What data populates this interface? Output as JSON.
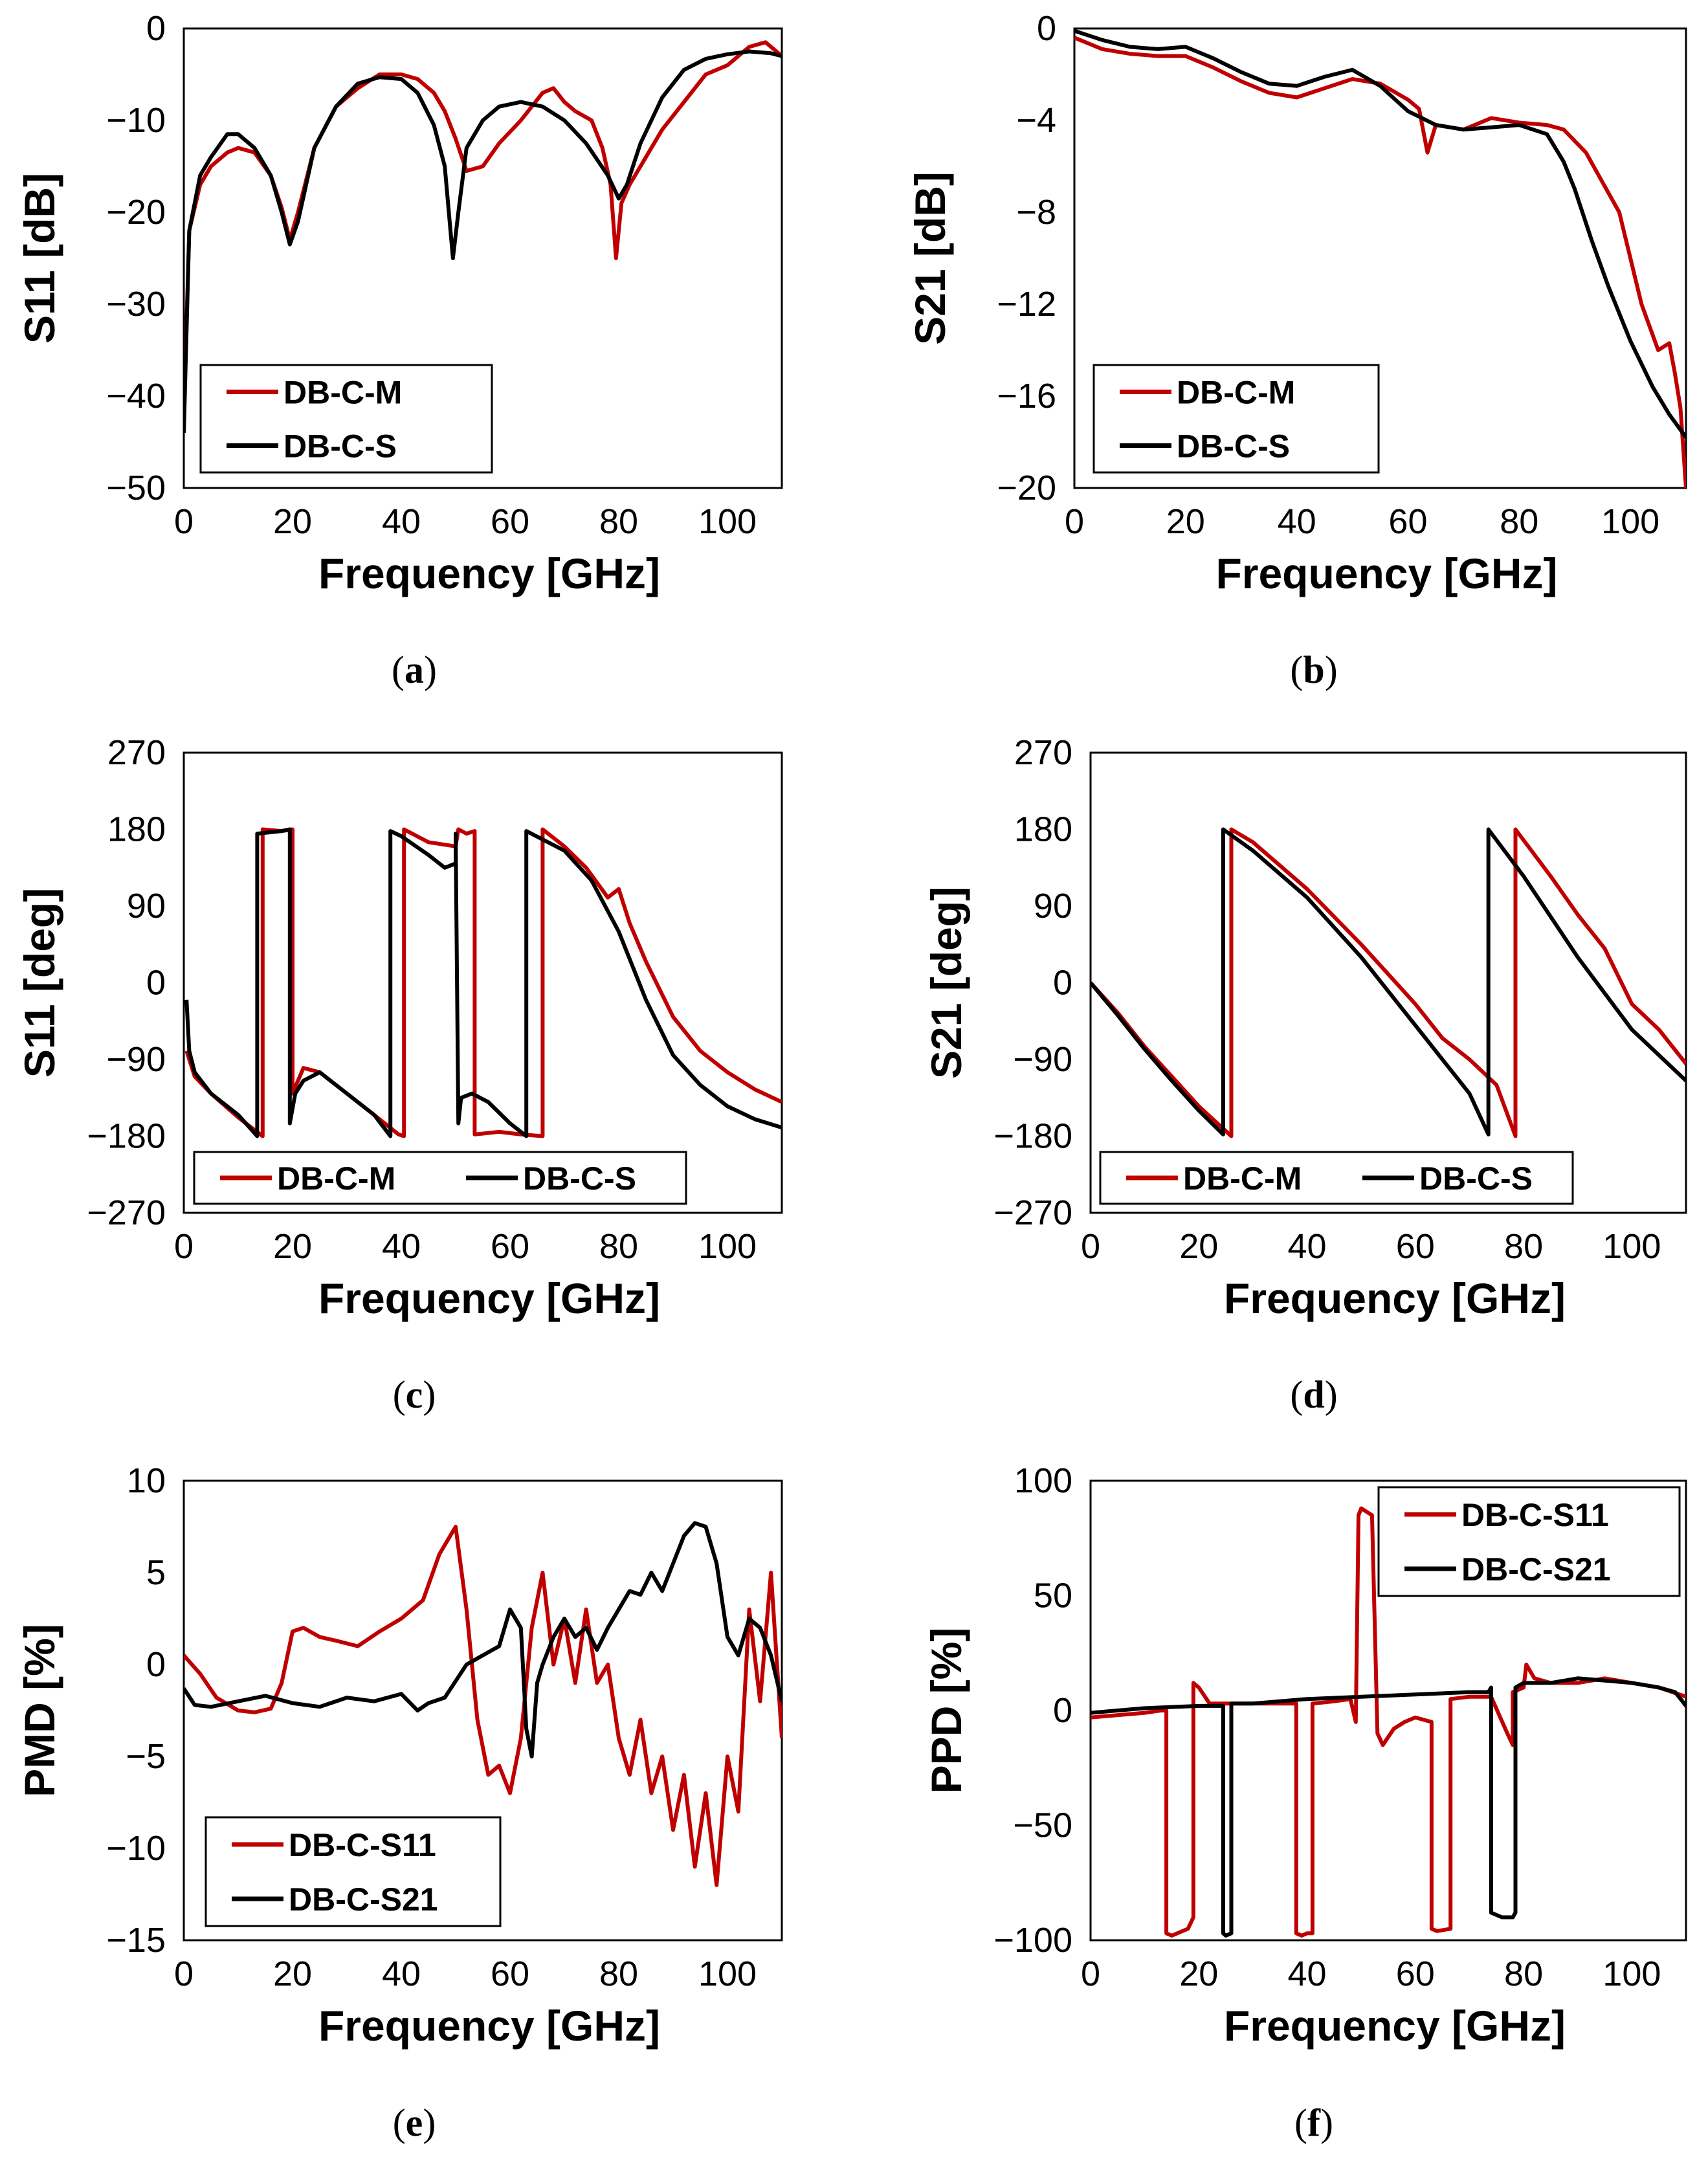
{
  "colors": {
    "measured": "#c00000",
    "simulated": "#000000"
  },
  "chart_data": [
    {
      "id": "a",
      "caption_label": "a",
      "type": "line",
      "xlabel": "Frequency [GHz]",
      "ylabel": "S11 [dB]",
      "xlim": [
        0,
        110
      ],
      "ylim": [
        -50,
        0
      ],
      "xticks": [
        "0",
        "20",
        "40",
        "60",
        "80",
        "100"
      ],
      "yticks": [
        "0",
        "−10",
        "−20",
        "−30",
        "−40",
        "−50"
      ],
      "legend": {
        "position": "bottom-left",
        "layout": "vertical"
      },
      "series": [
        {
          "name": "DB-C-M",
          "color": "#c00000",
          "x": [
            0,
            1,
            3,
            5,
            8,
            10,
            13,
            16,
            18,
            19.5,
            21,
            24,
            28,
            32,
            36,
            40,
            43,
            46,
            48,
            50,
            52,
            55,
            58,
            62,
            66,
            68,
            70,
            72,
            75,
            77,
            78.5,
            79.5,
            80.5,
            82,
            85,
            88,
            92,
            96,
            100,
            104,
            107,
            110
          ],
          "y": [
            -42,
            -22,
            -17,
            -15,
            -13.5,
            -13,
            -13.5,
            -16,
            -19.5,
            -23,
            -20,
            -13,
            -8.5,
            -6.5,
            -5,
            -5,
            -5.5,
            -7,
            -9,
            -12,
            -15.5,
            -15,
            -12.5,
            -10,
            -7,
            -6.5,
            -8,
            -9,
            -10,
            -13,
            -17,
            -25,
            -19,
            -17,
            -14,
            -11,
            -8,
            -5,
            -4,
            -2,
            -1.5,
            -3
          ]
        },
        {
          "name": "DB-C-S",
          "color": "#000000",
          "x": [
            0,
            1,
            3,
            5,
            8,
            10,
            13,
            16,
            18,
            19.5,
            21,
            24,
            28,
            32,
            36,
            40,
            43,
            46,
            48,
            49.5,
            50.5,
            52,
            55,
            58,
            62,
            66,
            70,
            74,
            78,
            80,
            81.5,
            84,
            88,
            92,
            96,
            100,
            104,
            108,
            110
          ],
          "y": [
            -44,
            -22,
            -16,
            -14,
            -11.5,
            -11.5,
            -13,
            -16,
            -20,
            -23.5,
            -21,
            -13,
            -8.5,
            -6,
            -5.3,
            -5.5,
            -7,
            -10.5,
            -15,
            -25,
            -20,
            -13,
            -10,
            -8.5,
            -8,
            -8.5,
            -10,
            -12.5,
            -16,
            -18.5,
            -17,
            -12.5,
            -7.5,
            -4.5,
            -3.3,
            -2.8,
            -2.5,
            -2.7,
            -3
          ]
        }
      ]
    },
    {
      "id": "b",
      "caption_label": "b",
      "type": "line",
      "xlabel": "Frequency [GHz]",
      "ylabel": "S21 [dB]",
      "xlim": [
        0,
        110
      ],
      "ylim": [
        -20,
        0
      ],
      "xticks": [
        "0",
        "20",
        "40",
        "60",
        "80",
        "100"
      ],
      "yticks": [
        "0",
        "−4",
        "−8",
        "−12",
        "−16",
        "−20"
      ],
      "legend": {
        "position": "bottom-left",
        "layout": "vertical"
      },
      "series": [
        {
          "name": "DB-C-M",
          "color": "#c00000",
          "x": [
            0,
            5,
            10,
            15,
            20,
            25,
            30,
            35,
            40,
            45,
            50,
            55,
            60,
            62,
            63.5,
            65,
            70,
            75,
            80,
            85,
            88,
            92,
            95,
            98,
            100,
            102,
            105,
            107,
            108,
            109,
            110
          ],
          "y": [
            -0.4,
            -0.9,
            -1.1,
            -1.2,
            -1.2,
            -1.7,
            -2.3,
            -2.8,
            -3,
            -2.6,
            -2.2,
            -2.4,
            -3.1,
            -3.5,
            -5.4,
            -4.2,
            -4.4,
            -3.9,
            -4.1,
            -4.2,
            -4.4,
            -5.4,
            -6.7,
            -8,
            -10,
            -12,
            -14,
            -13.7,
            -15,
            -16.5,
            -20
          ]
        },
        {
          "name": "DB-C-S",
          "color": "#000000",
          "x": [
            0,
            5,
            10,
            15,
            20,
            25,
            30,
            35,
            40,
            45,
            50,
            55,
            60,
            65,
            70,
            75,
            80,
            85,
            88,
            90,
            93,
            96,
            100,
            104,
            107,
            110
          ],
          "y": [
            -0.1,
            -0.5,
            -0.8,
            -0.9,
            -0.8,
            -1.3,
            -1.9,
            -2.4,
            -2.5,
            -2.1,
            -1.8,
            -2.5,
            -3.6,
            -4.2,
            -4.4,
            -4.3,
            -4.2,
            -4.6,
            -5.8,
            -7,
            -9.2,
            -11.2,
            -13.6,
            -15.6,
            -16.8,
            -17.8
          ]
        }
      ]
    },
    {
      "id": "c",
      "caption_label": "c",
      "type": "line",
      "xlabel": "Frequency [GHz]",
      "ylabel": "S11 [deg]",
      "xlim": [
        0,
        110
      ],
      "ylim": [
        -270,
        270
      ],
      "xticks": [
        "0",
        "20",
        "40",
        "60",
        "80",
        "100"
      ],
      "yticks": [
        "270",
        "180",
        "90",
        "0",
        "−90",
        "−180",
        "−270"
      ],
      "legend": {
        "position": "bottom-left",
        "layout": "horizontal"
      },
      "series": [
        {
          "name": "DB-C-M",
          "color": "#c00000",
          "x": [
            0.5,
            2,
            5,
            10,
            14.5,
            14.5,
            18,
            20,
            20,
            22,
            25,
            30,
            35,
            39.5,
            40.5,
            40.5,
            45,
            50,
            50.5,
            50.5,
            52,
            53.5,
            53.5,
            58,
            62,
            66,
            66,
            70,
            74,
            78,
            80,
            82,
            85,
            90,
            95,
            100,
            105,
            110
          ],
          "y": [
            -80,
            -110,
            -130,
            -158,
            -180,
            180,
            178,
            180,
            -130,
            -100,
            -105,
            -130,
            -155,
            -178,
            -180,
            180,
            165,
            160,
            180,
            180,
            175,
            178,
            -178,
            -175,
            -178,
            -180,
            180,
            160,
            135,
            100,
            110,
            70,
            25,
            -40,
            -80,
            -105,
            -125,
            -140
          ]
        },
        {
          "name": "DB-C-S",
          "color": "#000000",
          "x": [
            0.5,
            1,
            2,
            5,
            10,
            13.5,
            13.5,
            18,
            19.5,
            19.5,
            20.5,
            22,
            25,
            30,
            35,
            38,
            38,
            40,
            45,
            48,
            50,
            50,
            50.5,
            51,
            53,
            56,
            60,
            63,
            63,
            70,
            75,
            80,
            85,
            90,
            95,
            100,
            105,
            110
          ],
          "y": [
            -20,
            -80,
            -105,
            -130,
            -155,
            -180,
            175,
            178,
            180,
            -165,
            -130,
            -115,
            -105,
            -130,
            -155,
            -180,
            178,
            172,
            150,
            135,
            140,
            175,
            -165,
            -135,
            -130,
            -140,
            -165,
            -180,
            178,
            155,
            120,
            60,
            -20,
            -85,
            -120,
            -145,
            -160,
            -170
          ]
        }
      ]
    },
    {
      "id": "d",
      "caption_label": "d",
      "type": "line",
      "xlabel": "Frequency [GHz]",
      "ylabel": "S21 [deg]",
      "xlim": [
        0,
        110
      ],
      "ylim": [
        -270,
        270
      ],
      "xticks": [
        "0",
        "20",
        "40",
        "60",
        "80",
        "100"
      ],
      "yticks": [
        "270",
        "180",
        "90",
        "0",
        "−90",
        "−180",
        "−270"
      ],
      "legend": {
        "position": "bottom-left",
        "layout": "horizontal"
      },
      "series": [
        {
          "name": "DB-C-M",
          "color": "#c00000",
          "x": [
            0,
            5,
            10,
            15,
            20,
            26,
            26,
            30,
            40,
            50,
            60,
            65,
            70,
            75,
            78.5,
            78.5,
            85,
            90,
            95,
            100,
            105,
            110
          ],
          "y": [
            0,
            -35,
            -75,
            -110,
            -145,
            -180,
            180,
            165,
            110,
            45,
            -25,
            -65,
            -90,
            -120,
            -180,
            180,
            125,
            80,
            40,
            -25,
            -55,
            -95
          ]
        },
        {
          "name": "DB-C-S",
          "color": "#000000",
          "x": [
            0,
            5,
            10,
            15,
            20,
            24.5,
            24.5,
            30,
            40,
            50,
            60,
            65,
            70,
            73.5,
            73.5,
            80,
            90,
            100,
            110
          ],
          "y": [
            0,
            -38,
            -78,
            -115,
            -150,
            -178,
            180,
            155,
            100,
            30,
            -50,
            -90,
            -130,
            -178,
            180,
            125,
            30,
            -55,
            -115
          ]
        }
      ]
    },
    {
      "id": "e",
      "caption_label": "e",
      "type": "line",
      "xlabel": "Frequency [GHz]",
      "ylabel": "PMD [%]",
      "xlim": [
        0,
        110
      ],
      "ylim": [
        -15,
        10
      ],
      "xticks": [
        "0",
        "20",
        "40",
        "60",
        "80",
        "100"
      ],
      "yticks": [
        "10",
        "5",
        "0",
        "−5",
        "−10",
        "−15"
      ],
      "legend": {
        "position": "bottom-left",
        "layout": "vertical"
      },
      "series": [
        {
          "name": "DB-C-S11",
          "color": "#c00000",
          "x": [
            0,
            3,
            6,
            10,
            13,
            16,
            18,
            20,
            22,
            25,
            28,
            32,
            36,
            40,
            44,
            47,
            50,
            52,
            54,
            56,
            58,
            60,
            62,
            64,
            66,
            68,
            70,
            72,
            74,
            76,
            78,
            80,
            82,
            84,
            86,
            88,
            90,
            92,
            94,
            96,
            98,
            100,
            102,
            104,
            106,
            108,
            110
          ],
          "y": [
            0.5,
            -0.5,
            -1.8,
            -2.5,
            -2.6,
            -2.4,
            -1,
            1.8,
            2,
            1.5,
            1.3,
            1,
            1.8,
            2.5,
            3.5,
            6,
            7.5,
            3,
            -3,
            -6,
            -5.5,
            -7,
            -4,
            2,
            5,
            0,
            2.5,
            -1,
            3,
            -1,
            0,
            -4,
            -6,
            -3,
            -7,
            -5,
            -9,
            -6,
            -11,
            -7,
            -12,
            -5,
            -8,
            3,
            -2,
            5,
            -4
          ]
        },
        {
          "name": "DB-C-S21",
          "color": "#000000",
          "x": [
            0,
            2,
            5,
            10,
            15,
            20,
            25,
            30,
            35,
            40,
            43,
            45,
            48,
            52,
            55,
            58,
            60,
            62,
            63,
            64,
            65,
            66,
            68,
            70,
            72,
            74,
            76,
            78,
            80,
            82,
            84,
            86,
            88,
            90,
            92,
            94,
            96,
            98,
            100,
            102,
            104,
            106,
            108,
            110
          ],
          "y": [
            -1.3,
            -2.2,
            -2.3,
            -2,
            -1.7,
            -2.1,
            -2.3,
            -1.8,
            -2,
            -1.6,
            -2.5,
            -2.1,
            -1.8,
            0,
            0.5,
            1,
            3,
            2,
            -3.5,
            -5,
            -1,
            0,
            1.5,
            2.5,
            1.5,
            2,
            0.8,
            2,
            3,
            4,
            3.8,
            5,
            4,
            5.5,
            7,
            7.7,
            7.5,
            5.5,
            1.5,
            0.5,
            2.5,
            2,
            0.5,
            -2
          ]
        }
      ]
    },
    {
      "id": "f",
      "caption_label": "f",
      "type": "line",
      "xlabel": "Frequency [GHz]",
      "ylabel": "PPD [%]",
      "xlim": [
        0,
        110
      ],
      "ylim": [
        -100,
        100
      ],
      "xticks": [
        "0",
        "20",
        "40",
        "60",
        "80",
        "100"
      ],
      "yticks": [
        "100",
        "50",
        "0",
        "−50",
        "−100"
      ],
      "legend": {
        "position": "top-right",
        "layout": "vertical"
      },
      "series": [
        {
          "name": "DB-C-S11",
          "color": "#c00000",
          "x": [
            0,
            10,
            13,
            14,
            14,
            15,
            18,
            19,
            19,
            20,
            22,
            38,
            38,
            39,
            40,
            41,
            41,
            45,
            48,
            49,
            49.5,
            50,
            52,
            53,
            54,
            56,
            58,
            60,
            63,
            63,
            64,
            66.5,
            66.5,
            70,
            74,
            77,
            78,
            78,
            80,
            80.5,
            82,
            85,
            90,
            95,
            100,
            105,
            110
          ],
          "y": [
            -3,
            -1,
            0,
            0,
            -97,
            -98,
            -95,
            -90,
            12,
            10,
            3,
            3,
            -97,
            -98,
            -97,
            -97,
            3,
            4,
            5,
            -5,
            85,
            88,
            85,
            -10,
            -15,
            -8,
            -5,
            -3,
            -5,
            -95,
            -96,
            -95,
            5,
            6,
            6,
            -10,
            -15,
            8,
            10,
            20,
            14,
            12,
            12,
            14,
            12,
            10,
            6
          ]
        },
        {
          "name": "DB-C-S21",
          "color": "#000000",
          "x": [
            0,
            10,
            20,
            24.5,
            24.5,
            25,
            26,
            26,
            30,
            40,
            50,
            60,
            70,
            73.5,
            74,
            74,
            76,
            78,
            78.5,
            78.5,
            80,
            85,
            90,
            95,
            100,
            105,
            108,
            110
          ],
          "y": [
            -1,
            1,
            2,
            2,
            -97,
            -98,
            -97,
            3,
            3,
            5,
            6,
            7,
            8,
            8,
            10,
            -88,
            -90,
            -90,
            -88,
            10,
            12,
            12,
            14,
            13,
            12,
            10,
            8,
            2
          ]
        }
      ]
    }
  ]
}
